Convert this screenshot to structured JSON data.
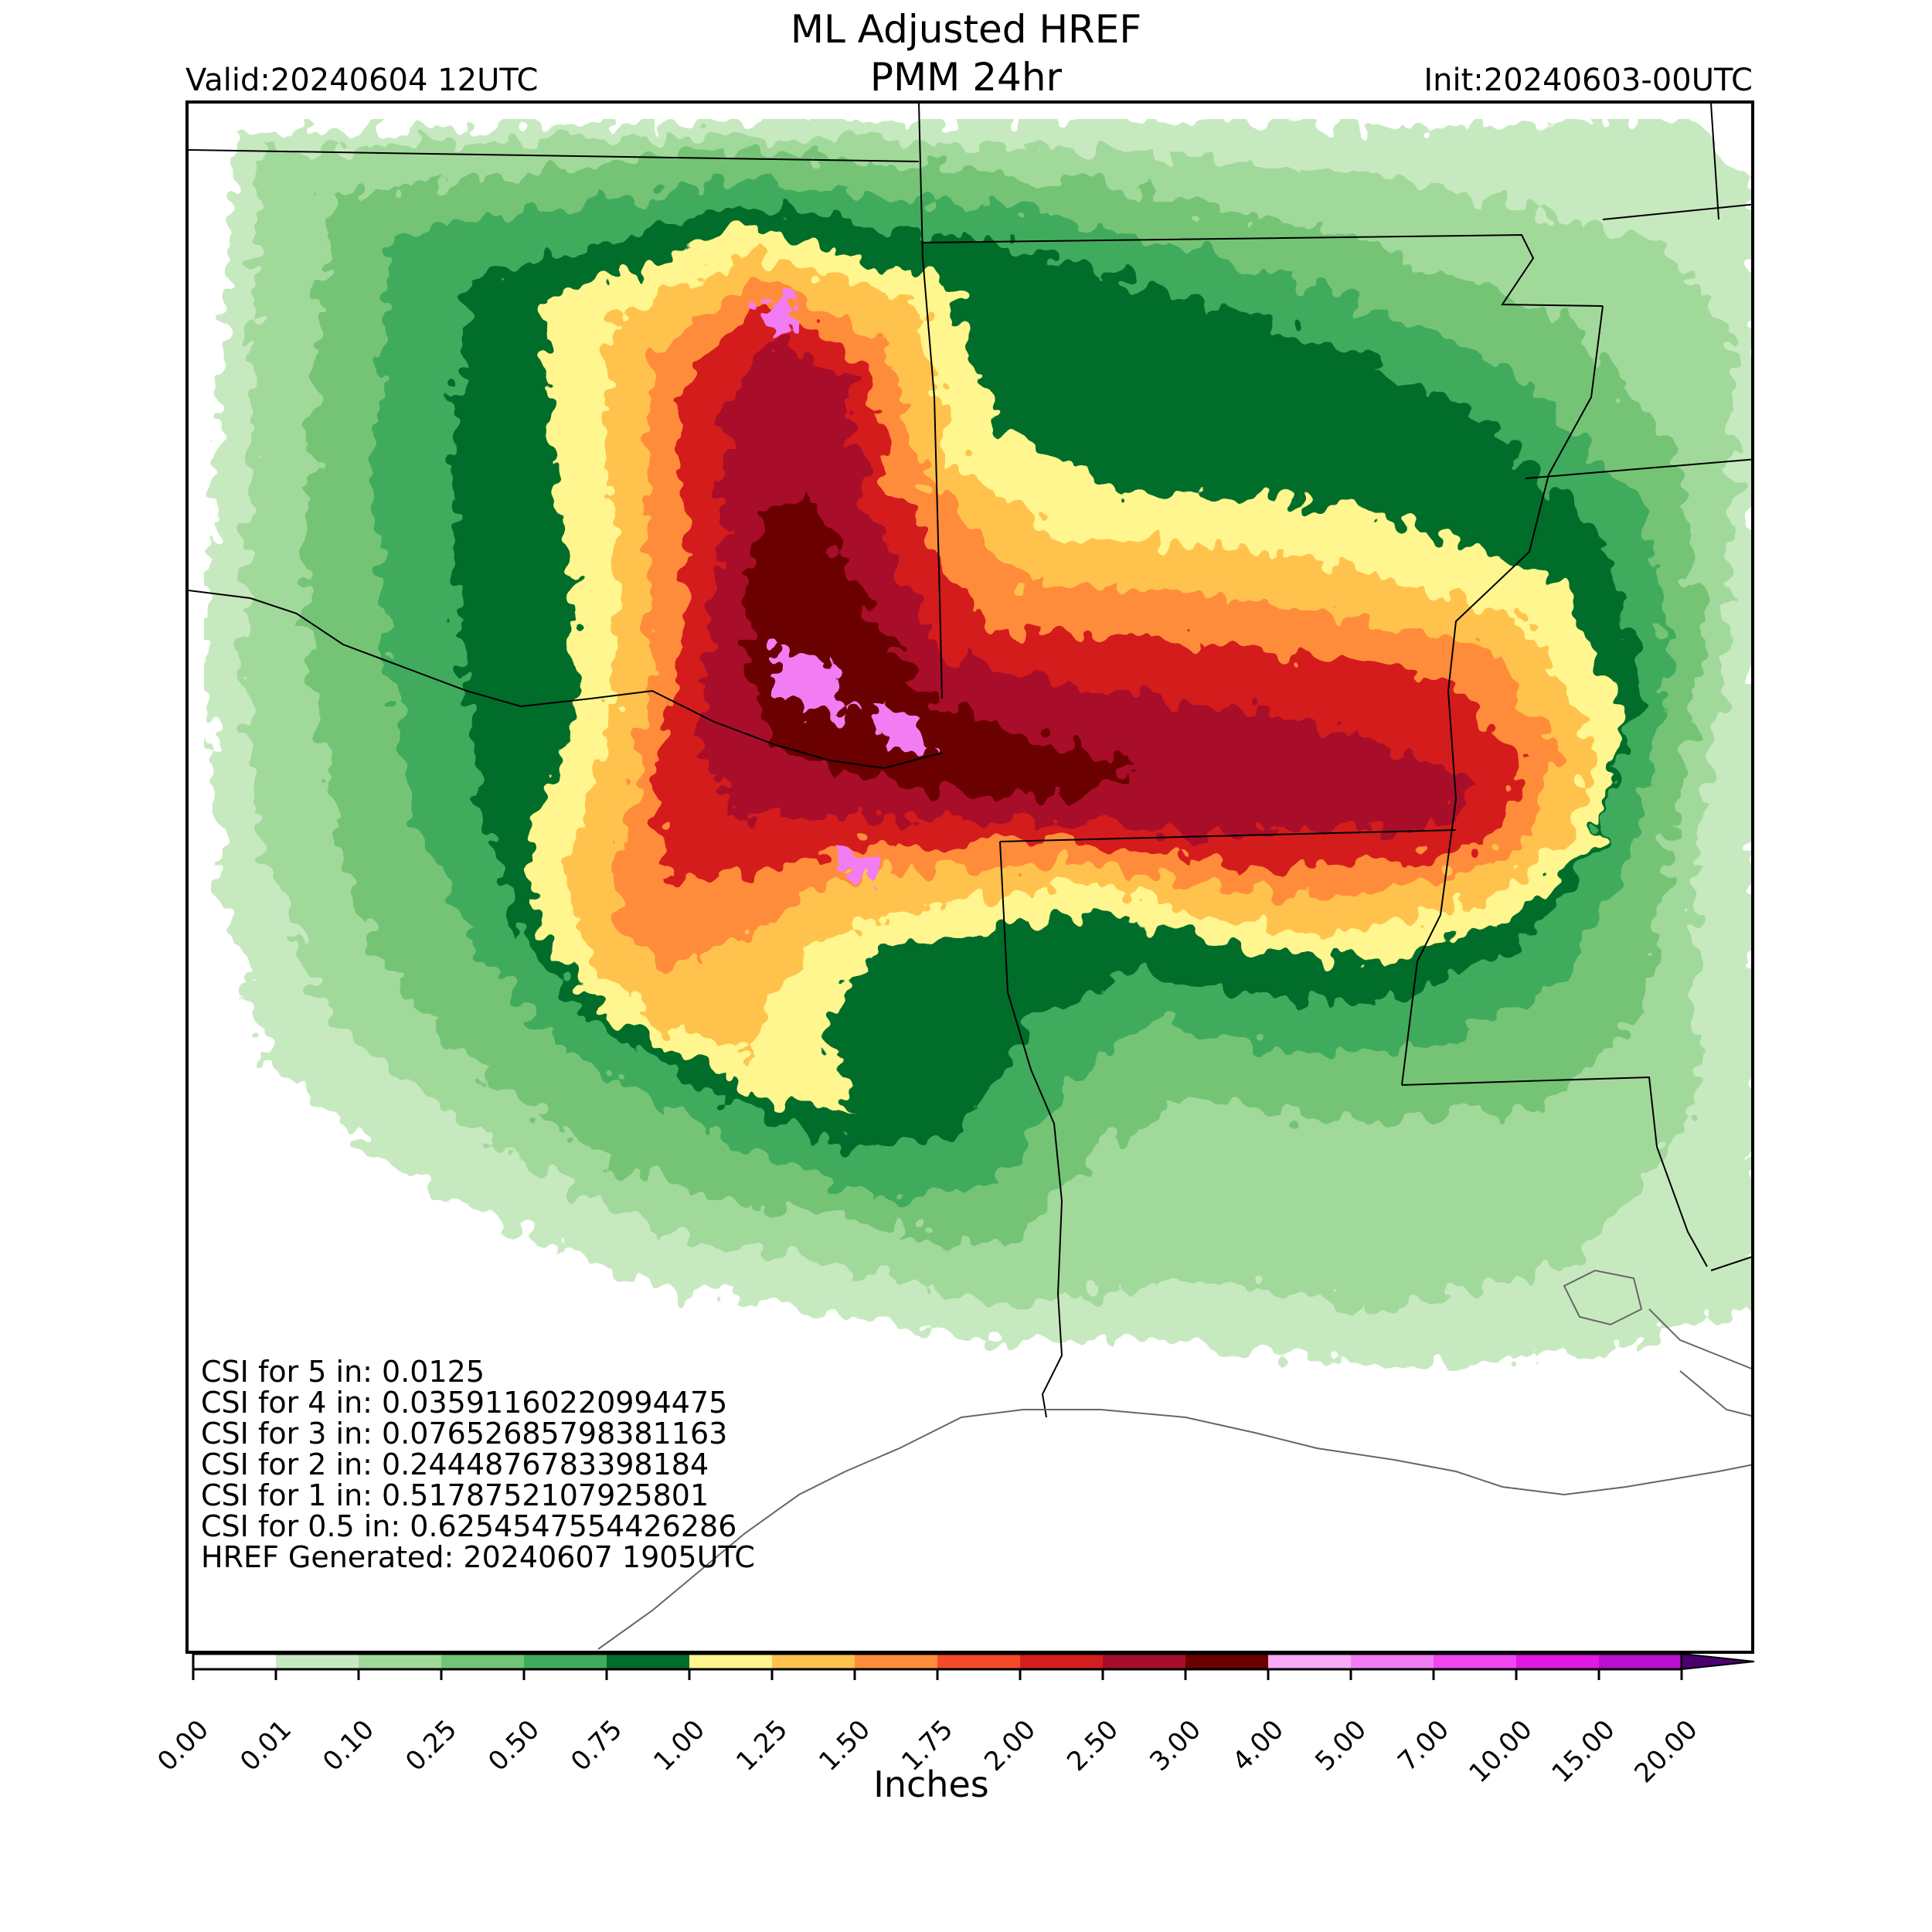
{
  "header": {
    "title_line1": "ML Adjusted HREF",
    "title_line2": "PMM 24hr",
    "valid": "Valid:20240604 12UTC",
    "init": "Init:20240603-00UTC"
  },
  "stats": [
    "CSI for 5 in: 0.0125",
    "CSI for 4 in: 0.03591160220994475",
    "CSI for 3 in: 0.07652685798381163",
    "CSI for 2 in: 0.2444876783398184",
    "CSI for 1 in: 0.5178752107925801",
    "CSI for 0.5 in: 0.6254547554426286",
    "HREF Generated: 20240607 1905UTC"
  ],
  "colorbar": {
    "label": "Inches",
    "ticks": [
      "0.00",
      "0.01",
      "0.10",
      "0.25",
      "0.50",
      "0.75",
      "1.00",
      "1.25",
      "1.50",
      "1.75",
      "2.00",
      "2.50",
      "3.00",
      "4.00",
      "5.00",
      "7.00",
      "10.00",
      "15.00",
      "20.00"
    ],
    "colors": [
      "#ffffff",
      "#c7e9c0",
      "#a1d99b",
      "#74c476",
      "#41ab5d",
      "#006d2c",
      "#fff68f",
      "#ffc34d",
      "#ff8c3a",
      "#f44a2a",
      "#d41e1e",
      "#a80d2c",
      "#6b0000",
      "#f7aaf7",
      "#f27df2",
      "#f046f0",
      "#e019e0",
      "#b80fd0",
      "#8a00c4"
    ],
    "extend_color": "#4b0070"
  },
  "map_colors": {
    "very_light": "#c7e9c0",
    "light": "#a1d99b",
    "medium": "#74c476",
    "green": "#41ab5d",
    "dark_green": "#006d2c",
    "yellow": "#fff68f",
    "orange_light": "#ffc34d",
    "orange": "#ff8c3a",
    "red_orange": "#f44a2a",
    "red": "#d41e1e",
    "crimson": "#a80d2c",
    "maroon": "#6b0000",
    "pink": "#f27df2"
  }
}
